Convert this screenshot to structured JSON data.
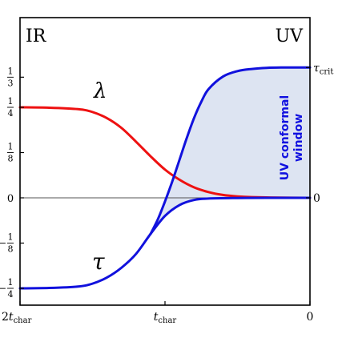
{
  "chart_data": {
    "type": "line",
    "corner_labels": {
      "left": "IR",
      "right": "UV"
    },
    "x_ticks": [
      {
        "x": -2,
        "label": "2",
        "sub": "char",
        "sublead": "t"
      },
      {
        "x": -1,
        "label": "",
        "sub": "char",
        "sublead": "t"
      },
      {
        "x": 0,
        "label": "0",
        "sub": "",
        "sublead": ""
      }
    ],
    "xlim": [
      -2,
      0
    ],
    "ylim": [
      -0.3,
      0.45
    ],
    "y_ticks_left": [
      {
        "y": 0.3333,
        "num": "1",
        "den": "3",
        "sign": ""
      },
      {
        "y": 0.25,
        "num": "1",
        "den": "4",
        "sign": ""
      },
      {
        "y": 0.125,
        "num": "1",
        "den": "8",
        "sign": ""
      },
      {
        "y": 0,
        "text": "0"
      },
      {
        "y": -0.125,
        "num": "1",
        "den": "8",
        "sign": "−"
      },
      {
        "y": -0.25,
        "num": "1",
        "den": "4",
        "sign": "−"
      }
    ],
    "y_ticks_right": [
      {
        "y": 0.36,
        "main": "τ",
        "sub": "crit"
      },
      {
        "y": 0,
        "main": "0",
        "sub": ""
      }
    ],
    "series": [
      {
        "name": "λ",
        "color": "#ee1111",
        "points": [
          [
            -2.0,
            0.25
          ],
          [
            -1.8,
            0.249
          ],
          [
            -1.6,
            0.245
          ],
          [
            -1.5,
            0.237
          ],
          [
            -1.4,
            0.22
          ],
          [
            -1.3,
            0.193
          ],
          [
            -1.2,
            0.155
          ],
          [
            -1.1,
            0.115
          ],
          [
            -1.0,
            0.078
          ],
          [
            -0.9,
            0.05
          ],
          [
            -0.8,
            0.029
          ],
          [
            -0.7,
            0.016
          ],
          [
            -0.6,
            0.008
          ],
          [
            -0.5,
            0.004
          ],
          [
            -0.4,
            0.002
          ],
          [
            -0.2,
            0.0005
          ],
          [
            0.0,
            0.0
          ]
        ]
      },
      {
        "name": "τ",
        "color": "#1111dd",
        "points": [
          [
            -2.0,
            -0.25
          ],
          [
            -1.8,
            -0.249
          ],
          [
            -1.6,
            -0.245
          ],
          [
            -1.5,
            -0.237
          ],
          [
            -1.4,
            -0.22
          ],
          [
            -1.3,
            -0.193
          ],
          [
            -1.2,
            -0.155
          ],
          [
            -1.1,
            -0.1
          ],
          [
            -1.0,
            -0.05
          ],
          [
            -0.9,
            -0.02
          ],
          [
            -0.8,
            -0.006
          ],
          [
            -0.7,
            -0.002
          ],
          [
            -0.5,
            -0.0005
          ],
          [
            -0.3,
            0.0
          ],
          [
            0.0,
            0.0
          ]
        ]
      },
      {
        "name": "",
        "color": "#1111dd",
        "points": [
          [
            -1.1,
            -0.1
          ],
          [
            -1.05,
            -0.06
          ],
          [
            -1.0,
            -0.01
          ],
          [
            -0.95,
            0.045
          ],
          [
            -0.9,
            0.105
          ],
          [
            -0.85,
            0.165
          ],
          [
            -0.8,
            0.22
          ],
          [
            -0.75,
            0.265
          ],
          [
            -0.7,
            0.3
          ],
          [
            -0.6,
            0.335
          ],
          [
            -0.5,
            0.35
          ],
          [
            -0.4,
            0.356
          ],
          [
            -0.3,
            0.359
          ],
          [
            -0.2,
            0.36
          ],
          [
            0.0,
            0.36
          ]
        ]
      }
    ],
    "band": {
      "label_line1": "UV conformal",
      "label_line2": "window",
      "fill": "#dde4f2"
    },
    "zero_line": true,
    "grid": false
  }
}
